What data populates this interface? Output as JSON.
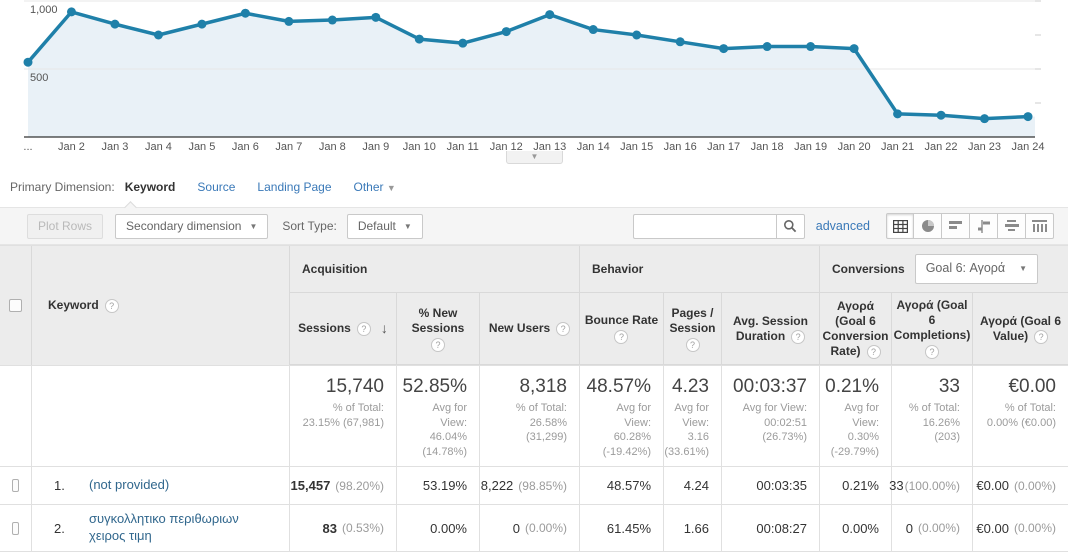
{
  "chart_data": {
    "type": "line",
    "series_name": "Sessions",
    "x": [
      "...",
      "Jan 2",
      "Jan 3",
      "Jan 4",
      "Jan 5",
      "Jan 6",
      "Jan 7",
      "Jan 8",
      "Jan 9",
      "Jan 10",
      "Jan 11",
      "Jan 12",
      "Jan 13",
      "Jan 14",
      "Jan 15",
      "Jan 16",
      "Jan 17",
      "Jan 18",
      "Jan 19",
      "Jan 20",
      "Jan 21",
      "Jan 22",
      "Jan 23",
      "Jan 24"
    ],
    "values": [
      550,
      920,
      830,
      750,
      830,
      910,
      850,
      860,
      880,
      720,
      690,
      775,
      900,
      790,
      750,
      700,
      650,
      665,
      665,
      650,
      170,
      160,
      135,
      150
    ],
    "ylim": [
      0,
      1000
    ],
    "yticks": [
      500,
      1000
    ],
    "ytick_labels": [
      "500",
      "1,000"
    ],
    "grid": true,
    "legend": false
  },
  "primary_dimension": {
    "label": "Primary Dimension:",
    "tabs": [
      {
        "label": "Keyword"
      },
      {
        "label": "Source"
      },
      {
        "label": "Landing Page"
      },
      {
        "label": "Other"
      }
    ],
    "other_caret": "▼"
  },
  "toolbar": {
    "plot_rows": "Plot Rows",
    "secondary_dimension": "Secondary dimension",
    "sort_type_label": "Sort Type:",
    "sort_type_value": "Default",
    "search_value": "",
    "advanced": "advanced",
    "view_icons": [
      "data-table-view",
      "percentage-pie-view",
      "performance-bars-view",
      "comparison-view",
      "term-cloud-view",
      "pivot-view"
    ]
  },
  "table": {
    "groups": {
      "acquisition": "Acquisition",
      "behavior": "Behavior",
      "conversions": "Conversions",
      "goal_selector": "Goal 6: Αγορά"
    },
    "columns": {
      "keyword": "Keyword",
      "sessions": "Sessions",
      "new_sessions": "% New Sessions",
      "new_users": "New Users",
      "bounce_rate": "Bounce Rate",
      "pages_session": "Pages / Session",
      "avg_duration": "Avg. Session Duration",
      "conv_rate": "Αγορά (Goal 6 Conversion Rate)",
      "completions": "Αγορά (Goal 6 Completions)",
      "value": "Αγορά (Goal 6 Value)"
    },
    "summary": [
      {
        "main": "15,740",
        "sub": "% of Total: 23.15% (67,981)"
      },
      {
        "main": "52.85%",
        "sub": "Avg for View: 46.04% (14.78%)"
      },
      {
        "main": "8,318",
        "sub": "% of Total: 26.58% (31,299)"
      },
      {
        "main": "48.57%",
        "sub": "Avg for View: 60.28% (-19.42%)"
      },
      {
        "main": "4.23",
        "sub": "Avg for View: 3.16 (33.61%)"
      },
      {
        "main": "00:03:37",
        "sub": "Avg for View: 00:02:51 (26.73%)"
      },
      {
        "main": "0.21%",
        "sub": "Avg for View: 0.30% (-29.79%)"
      },
      {
        "main": "33",
        "sub": "% of Total: 16.26% (203)"
      },
      {
        "main": "€0.00",
        "sub": "% of Total: 0.00% (€0.00)"
      }
    ],
    "rows": [
      {
        "num": "1.",
        "keyword": "(not provided)",
        "metrics": [
          {
            "main": "15,457",
            "sub": "(98.20%)"
          },
          {
            "main": "53.19%"
          },
          {
            "main": "8,222",
            "sub": "(98.85%)"
          },
          {
            "main": "48.57%"
          },
          {
            "main": "4.24"
          },
          {
            "main": "00:03:35"
          },
          {
            "main": "0.21%"
          },
          {
            "main": "33",
            "sub": "(100.00%)"
          },
          {
            "main": "€0.00",
            "sub": "(0.00%)"
          }
        ]
      },
      {
        "num": "2.",
        "keyword": "συγκολλητικο περιθωριων χειρος τιμη",
        "metrics": [
          {
            "main": "83",
            "sub": "(0.53%)"
          },
          {
            "main": "0.00%"
          },
          {
            "main": "0",
            "sub": "(0.00%)"
          },
          {
            "main": "61.45%"
          },
          {
            "main": "1.66"
          },
          {
            "main": "00:08:27"
          },
          {
            "main": "0.00%"
          },
          {
            "main": "0",
            "sub": "(0.00%)"
          },
          {
            "main": "€0.00",
            "sub": "(0.00%)"
          }
        ]
      }
    ]
  },
  "colors": {
    "line": "#1f80a9",
    "fill": "#e9f1f7",
    "link": "#3a79b8",
    "kwlink": "#31678d",
    "header-bg": "#ececec",
    "toolbar-bg": "#f5f5f5"
  }
}
